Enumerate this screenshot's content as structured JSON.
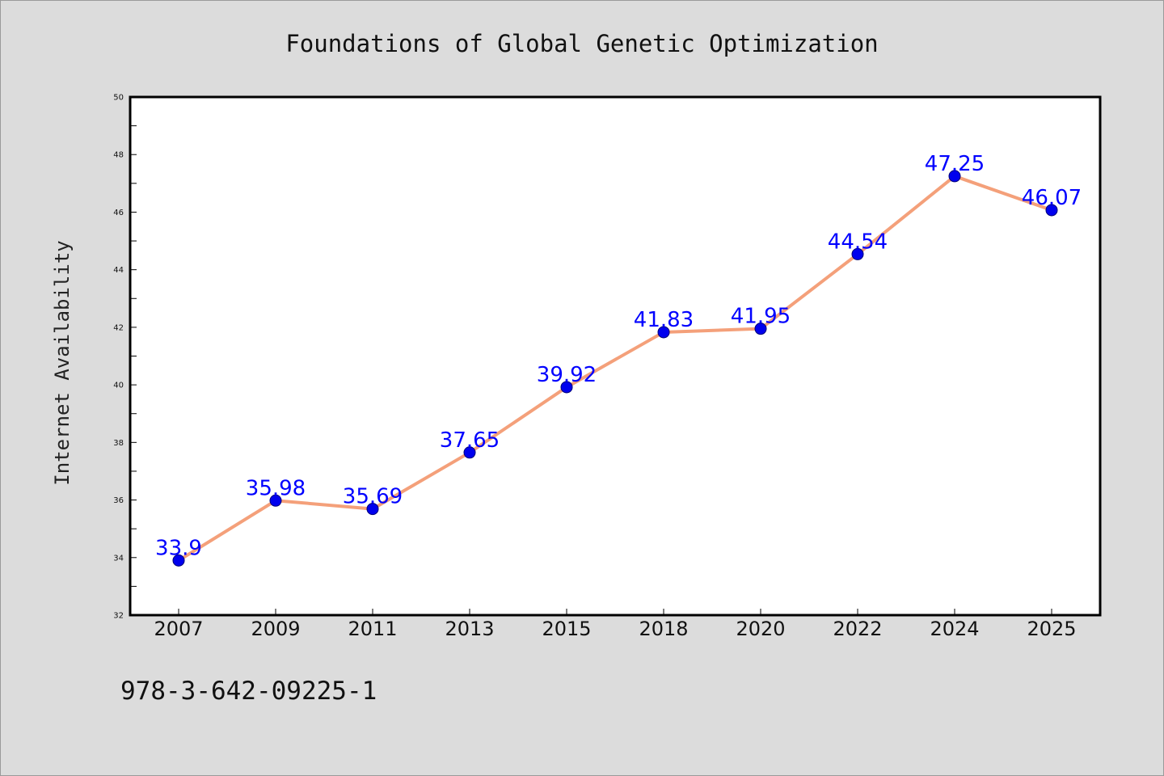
{
  "chart_data": {
    "type": "line",
    "title": "Foundations of Global Genetic Optimization",
    "xlabel": "",
    "ylabel": "Internet Availability",
    "categories": [
      "2007",
      "2009",
      "2011",
      "2013",
      "2015",
      "2018",
      "2020",
      "2022",
      "2024",
      "2025"
    ],
    "series": [
      {
        "values": [
          33.9,
          35.98,
          35.69,
          37.65,
          39.92,
          41.83,
          41.95,
          44.54,
          47.25,
          46.07
        ],
        "labels": [
          "33.9",
          "35.98",
          "35.69",
          "37.65",
          "39.92",
          "41.83",
          "41.95",
          "44.54",
          "47.25",
          "46.07"
        ]
      }
    ],
    "ylim": [
      32,
      50
    ],
    "yticks": [
      "32",
      "34",
      "36",
      "38",
      "40",
      "42",
      "44",
      "46",
      "48",
      "50"
    ],
    "yminor_step": 1,
    "grid": false,
    "legend": "none",
    "colors": {
      "line": "#f4a07a",
      "marker": "#0000ee",
      "label": "#0000ff",
      "background": "#dcdcdc",
      "plot_area": "#ffffff"
    }
  },
  "footer": {
    "isbn": "978-3-642-09225-1"
  }
}
